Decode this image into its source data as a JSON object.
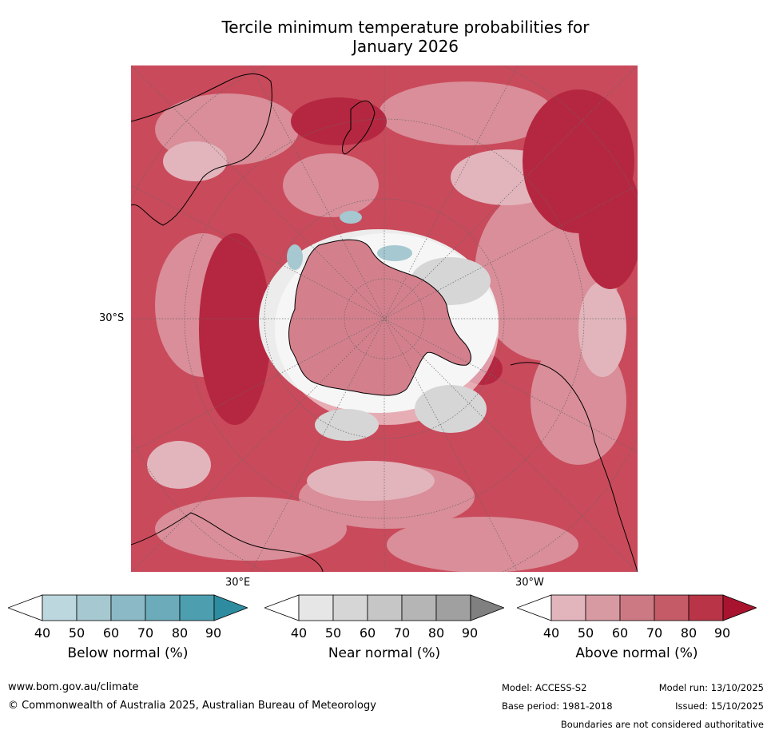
{
  "title_line1": "Tercile minimum temperature probabilities for",
  "title_line2": "January 2026",
  "map": {
    "lat_label": "30°S",
    "lon_label_east": "30°E",
    "lon_label_west": "30°W"
  },
  "colorbars": [
    {
      "title": "Below normal (%)",
      "ticks": [
        "40",
        "50",
        "60",
        "70",
        "80",
        "90"
      ],
      "colors": [
        "#ffffff",
        "#bdd7de",
        "#a6c8d0",
        "#8bb9c5",
        "#6cabba",
        "#4d9fb0",
        "#2e8ca0"
      ]
    },
    {
      "title": "Near normal (%)",
      "ticks": [
        "40",
        "50",
        "60",
        "70",
        "80",
        "90"
      ],
      "colors": [
        "#ffffff",
        "#e6e6e6",
        "#d6d6d6",
        "#c6c6c6",
        "#b5b5b5",
        "#a0a0a0",
        "#808080"
      ]
    },
    {
      "title": "Above normal (%)",
      "ticks": [
        "40",
        "50",
        "60",
        "70",
        "80",
        "90"
      ],
      "colors": [
        "#ffffff",
        "#e2b5bc",
        "#d89aa2",
        "#cd7984",
        "#c55b67",
        "#ba3447",
        "#a8142e"
      ]
    }
  ],
  "footer": {
    "website": "www.bom.gov.au/climate",
    "copyright": "© Commonwealth of Australia 2025, Australian Bureau of Meteorology",
    "model": "Model: ACCESS-S2",
    "base_period": "Base period: 1981-2018",
    "model_run": "Model run: 13/10/2025",
    "issued": "Issued: 15/10/2025",
    "disclaimer": "Boundaries are not considered authoritative"
  }
}
